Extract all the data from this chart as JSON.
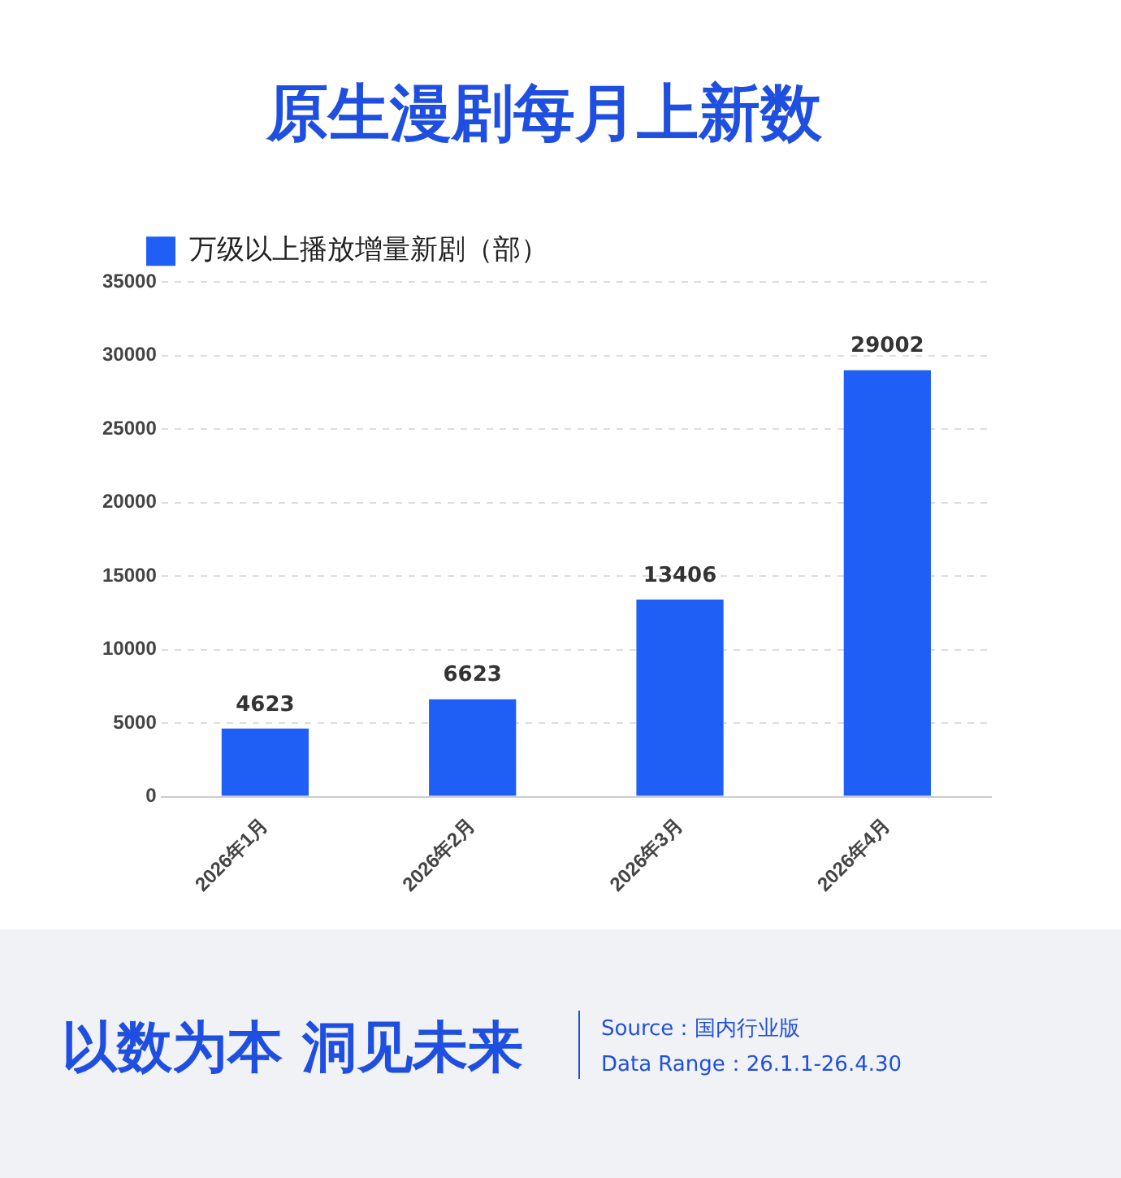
{
  "chart_data": {
    "type": "bar",
    "title": "原生漫剧每月上新数",
    "categories": [
      "2026年1月",
      "2026年2月",
      "2026年3月",
      "2026年4月"
    ],
    "series": [
      {
        "name": "万级以上播放增量新剧（部）",
        "color": "#1f5ff5",
        "values": [
          4623,
          6623,
          13406,
          29002
        ]
      }
    ],
    "ylim": [
      0,
      35000
    ],
    "yticks": [
      0,
      5000,
      10000,
      15000,
      20000,
      25000,
      30000,
      35000
    ],
    "grid": "y",
    "legend": "top left",
    "data_labels": true,
    "annotations": [
      "以数为本 洞见未来",
      "Source：国内行业版",
      "Data Range：26.1.1-26.4.30"
    ]
  }
}
